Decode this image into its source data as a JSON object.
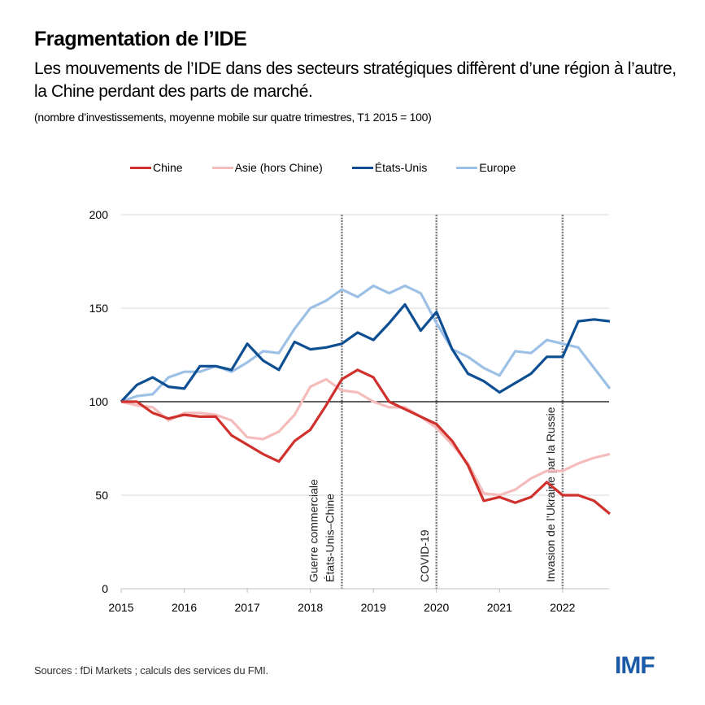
{
  "header": {
    "title": "Fragmentation de l’IDE",
    "subtitle": "Les mouvements de l’IDE dans des secteurs stratégiques diffèrent d’une région à l’autre, la Chine perdant des parts de marché.",
    "note": "(nombre d’investissements, moyenne mobile sur quatre trimestres, T1 2015 = 100)"
  },
  "footer": {
    "sources": "Sources : fDi Markets ; calculs des services du FMI.",
    "logo": "IMF"
  },
  "colors": {
    "chine": "#d0312d",
    "asie": "#f5bcbc",
    "etats_unis": "#0d4f92",
    "europe": "#9dc0e6",
    "grid": "#d9d9d9",
    "baseline": "#000000",
    "event_line": "#7f7f7f"
  },
  "chart_data": {
    "type": "line",
    "title": "Fragmentation de l’IDE",
    "xlabel": "",
    "ylabel": "",
    "ylim": [
      0,
      200
    ],
    "yticks": [
      0,
      50,
      100,
      150,
      200
    ],
    "xticks": [
      "2015",
      "2016",
      "2017",
      "2018",
      "2019",
      "2020",
      "2021",
      "2022"
    ],
    "x_start": 2015.0,
    "x_end": 2022.75,
    "x_step": 0.25,
    "grid": true,
    "reference_line": 100,
    "legend_position": "top",
    "series": [
      {
        "name": "Chine",
        "key": "chine",
        "values": [
          100,
          100,
          94,
          91,
          93,
          92,
          92,
          82,
          77,
          72,
          68,
          79,
          85,
          98,
          112,
          117,
          113,
          100,
          96,
          92,
          88,
          79,
          66,
          47,
          49,
          46,
          49,
          57,
          50,
          50,
          47,
          40
        ]
      },
      {
        "name": "Asie (hors Chine)",
        "key": "asie",
        "values": [
          100,
          98,
          97,
          90,
          94,
          94,
          93,
          90,
          81,
          80,
          84,
          93,
          108,
          112,
          106,
          105,
          100,
          97,
          97,
          92,
          86,
          77,
          67,
          51,
          50,
          53,
          59,
          63,
          63,
          67,
          70,
          72
        ]
      },
      {
        "name": "États-Unis",
        "key": "etats_unis",
        "values": [
          100,
          109,
          113,
          108,
          107,
          119,
          119,
          117,
          131,
          122,
          117,
          132,
          128,
          129,
          131,
          137,
          133,
          142,
          152,
          138,
          148,
          128,
          115,
          111,
          105,
          110,
          115,
          124,
          124,
          143,
          144,
          143
        ]
      },
      {
        "name": "Europe",
        "key": "europe",
        "values": [
          100,
          103,
          104,
          113,
          116,
          116,
          119,
          116,
          121,
          127,
          126,
          139,
          150,
          154,
          160,
          156,
          162,
          158,
          162,
          158,
          142,
          128,
          124,
          118,
          114,
          127,
          126,
          133,
          131,
          129,
          118,
          107
        ]
      }
    ],
    "events": [
      {
        "x": 2018.5,
        "label_lines": [
          "Guerre commerciale",
          "États-Unis–Chine"
        ]
      },
      {
        "x": 2020.0,
        "label_lines": [
          "COVID-19"
        ]
      },
      {
        "x": 2022.0,
        "label_lines": [
          "Invasion de l’Ukraine par la Russie"
        ]
      }
    ]
  }
}
